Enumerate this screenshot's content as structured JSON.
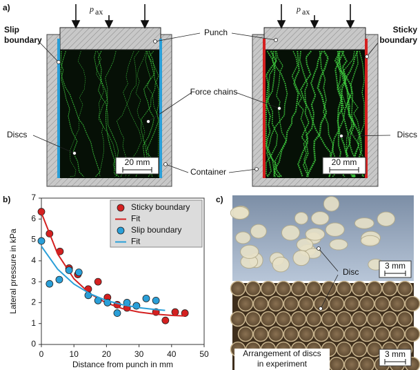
{
  "panel_a": {
    "label": "a)",
    "load": {
      "symbol": "p",
      "subscript": "ax"
    },
    "punch": "Punch",
    "force_chains": "Force chains",
    "container": "Container",
    "left": {
      "boundary": [
        "Slip",
        "boundary"
      ],
      "discs": "Discs",
      "scale": "20 mm"
    },
    "right": {
      "boundary": [
        "Sticky",
        "boundary"
      ],
      "discs": "Discs",
      "scale": "20 mm"
    }
  },
  "chart_data": {
    "type": "scatter",
    "label": "b)",
    "xlabel": "Distance from punch in mm",
    "ylabel": "Lateral pressure in kPa",
    "xlim": [
      0,
      50
    ],
    "ylim": [
      0,
      7
    ],
    "xticks": [
      0,
      10,
      20,
      30,
      40,
      50
    ],
    "yticks": [
      0,
      1,
      2,
      3,
      4,
      5,
      6,
      7
    ],
    "legend": "upper right",
    "series": [
      {
        "name": "Sticky boundary",
        "color": "#d42020",
        "mode": "markers",
        "x": [
          0,
          2.5,
          5.7,
          8.5,
          11.2,
          14.4,
          17.4,
          20.3,
          23.3,
          26.3,
          29.2,
          35.2,
          38.1,
          41.1,
          44.1
        ],
        "values": [
          6.35,
          5.3,
          4.45,
          3.65,
          3.35,
          2.65,
          3.0,
          2.25,
          1.9,
          1.75,
          1.85,
          1.55,
          1.15,
          1.55,
          1.5
        ]
      },
      {
        "name": "Fit",
        "color": "#d42020",
        "mode": "line",
        "x": [
          0,
          5,
          10,
          15,
          20,
          25,
          30,
          35,
          40,
          44
        ],
        "values": [
          6.3,
          4.33,
          3.14,
          2.42,
          1.98,
          1.71,
          1.55,
          1.45,
          1.39,
          1.36
        ]
      },
      {
        "name": "Slip boundary",
        "color": "#2a9fd8",
        "mode": "markers",
        "x": [
          0,
          2.5,
          5.5,
          8.5,
          11.5,
          14.4,
          17.4,
          20.3,
          23.3,
          26.3,
          29.2,
          32.2,
          35.2
        ],
        "values": [
          4.95,
          2.9,
          3.1,
          3.55,
          3.45,
          2.35,
          2.1,
          2.0,
          1.5,
          2.0,
          1.85,
          2.2,
          2.1
        ]
      },
      {
        "name": "Fit",
        "color": "#2a9fd8",
        "mode": "line",
        "x": [
          0,
          5,
          10,
          15,
          20,
          25,
          30,
          35,
          38
        ],
        "values": [
          4.7,
          3.6,
          2.89,
          2.42,
          2.1,
          1.9,
          1.76,
          1.67,
          1.63
        ]
      }
    ]
  },
  "panel_c": {
    "label": "c)",
    "disc": "Disc",
    "scale_top": "3 mm",
    "scale_bottom": "3 mm",
    "arrangement": [
      "Arrangement of discs",
      "in experiment"
    ]
  }
}
